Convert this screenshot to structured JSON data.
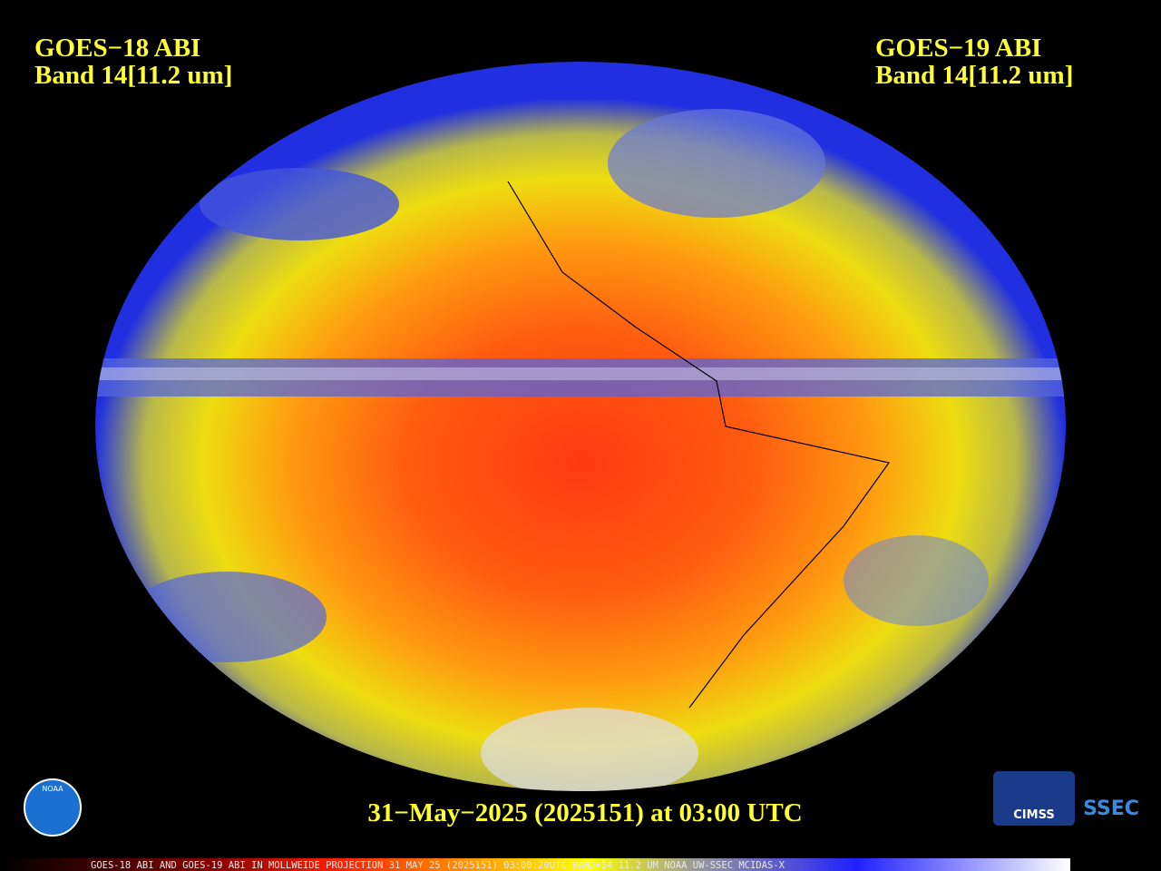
{
  "header": {
    "left": {
      "title": "GOES−18 ABI",
      "band": "Band 14[11.2 um]"
    },
    "right": {
      "title": "GOES−19 ABI",
      "band": "Band 14[11.2 um]"
    }
  },
  "timestamp": "31−May−2025 (2025151) at 03:00 UTC",
  "footer": "GOES-18 ABI AND GOES-19 ABI IN MOLLWEIDE PROJECTION 31 MAY 25 (2025151) 03:00:20UTC BAND=14 11.2 UM NOAA UW-SSEC MCIDAS-X",
  "logos": {
    "noaa": "NOAA",
    "cimss": "CIMSS",
    "ssec": "SSEC"
  }
}
